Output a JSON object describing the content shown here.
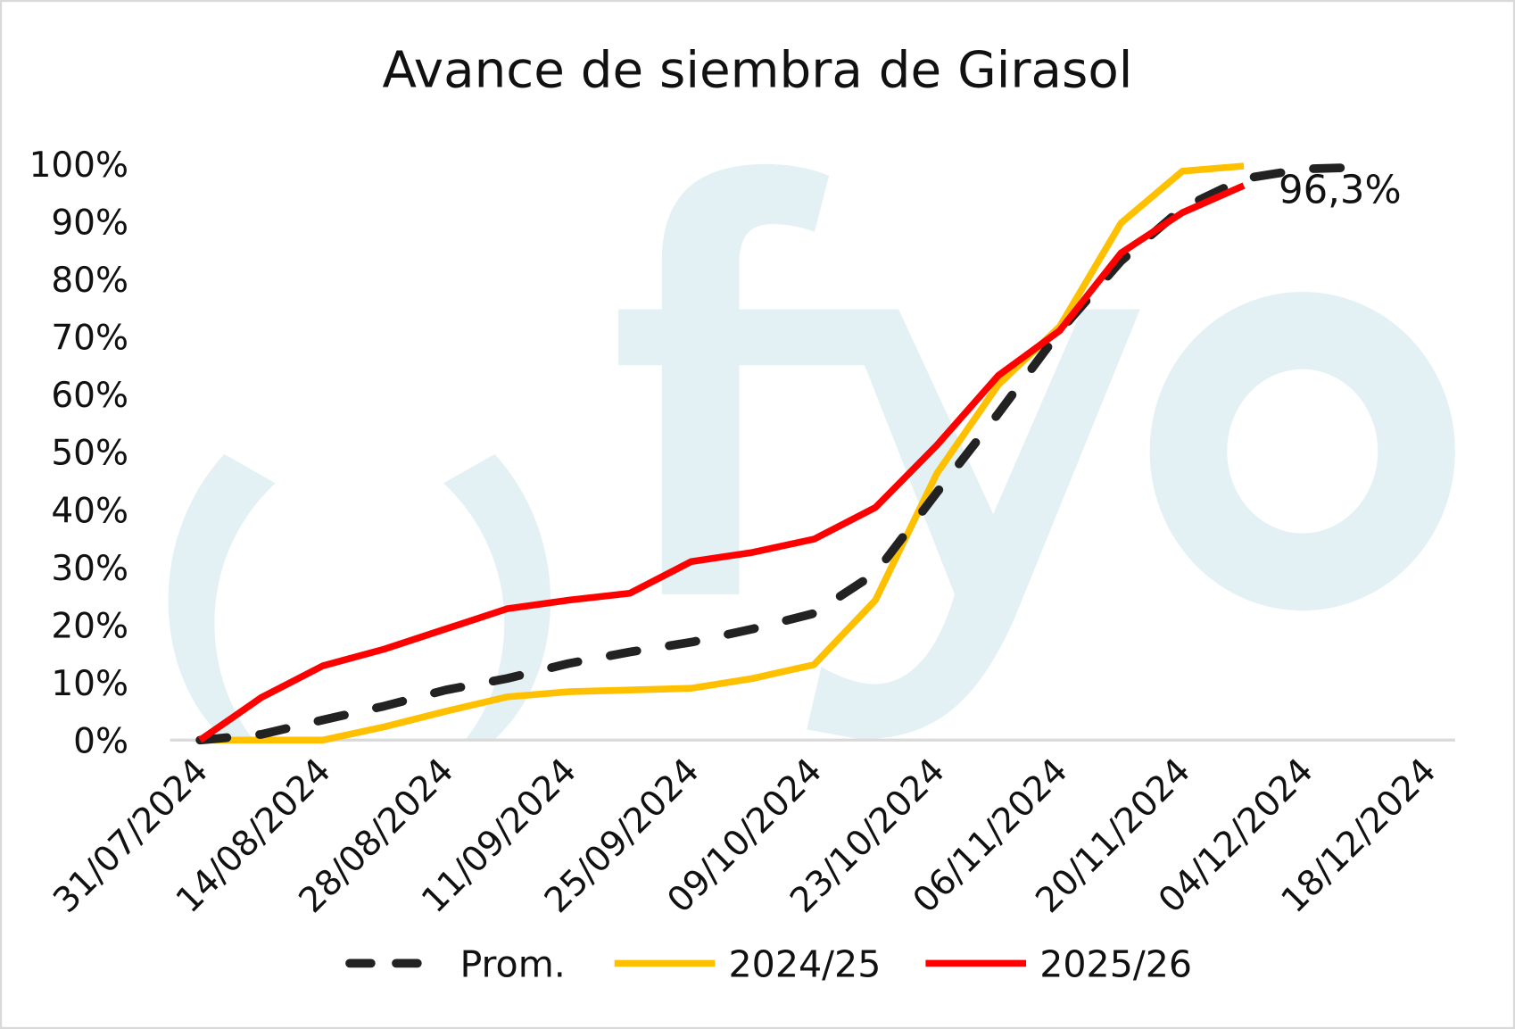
{
  "chart_data": {
    "type": "line",
    "title": "Avance de siembra de Girasol",
    "xlabel": "",
    "ylabel": "",
    "x_tick_labels": [
      "31/07/2024",
      "14/08/2024",
      "28/08/2024",
      "11/09/2024",
      "25/09/2024",
      "09/10/2024",
      "23/10/2024",
      "06/11/2024",
      "20/11/2024",
      "04/12/2024",
      "18/12/2024"
    ],
    "y_tick_labels": [
      "0%",
      "10%",
      "20%",
      "30%",
      "40%",
      "50%",
      "60%",
      "70%",
      "80%",
      "90%",
      "100%"
    ],
    "ylim": [
      0,
      100
    ],
    "xlim": [
      "31/07/2024",
      "18/12/2024"
    ],
    "grid": false,
    "legend_position": "bottom",
    "x": [
      "31/07",
      "07/08",
      "14/08",
      "21/08",
      "28/08",
      "04/09",
      "11/09",
      "18/09",
      "25/09",
      "02/10",
      "09/10",
      "16/10",
      "23/10",
      "30/10",
      "06/11",
      "13/11",
      "20/11",
      "27/11",
      "04/12",
      "11/12"
    ],
    "series": [
      {
        "name": "Prom.",
        "color": "#222222",
        "style": "dashed",
        "values": [
          0,
          1.0,
          3.5,
          5.9,
          8.7,
          10.7,
          13.3,
          15.3,
          17.0,
          19.3,
          22.0,
          29.0,
          43.0,
          56.7,
          71.0,
          83.2,
          92.4,
          97.5,
          99.2,
          99.5
        ]
      },
      {
        "name": "2024/25",
        "color": "#FFC000",
        "style": "solid",
        "values": [
          0,
          0,
          0,
          2.3,
          5.0,
          7.5,
          8.4,
          8.7,
          9.0,
          10.7,
          13.1,
          24.3,
          46.3,
          61.7,
          71.8,
          89.8,
          98.8,
          99.7,
          null,
          null
        ]
      },
      {
        "name": "2025/26",
        "color": "#FF0000",
        "style": "solid",
        "values": [
          0,
          7.4,
          12.9,
          15.8,
          19.3,
          22.8,
          24.3,
          25.5,
          31.0,
          32.6,
          34.9,
          40.4,
          51.2,
          63.3,
          71.1,
          84.6,
          91.6,
          96.3,
          null,
          null
        ]
      }
    ],
    "annotations": [
      {
        "text": "96,3%",
        "series": "2025/26",
        "x": "27/11"
      }
    ]
  },
  "watermark": {
    "text": "fyo",
    "color": "#E3F1F5"
  }
}
